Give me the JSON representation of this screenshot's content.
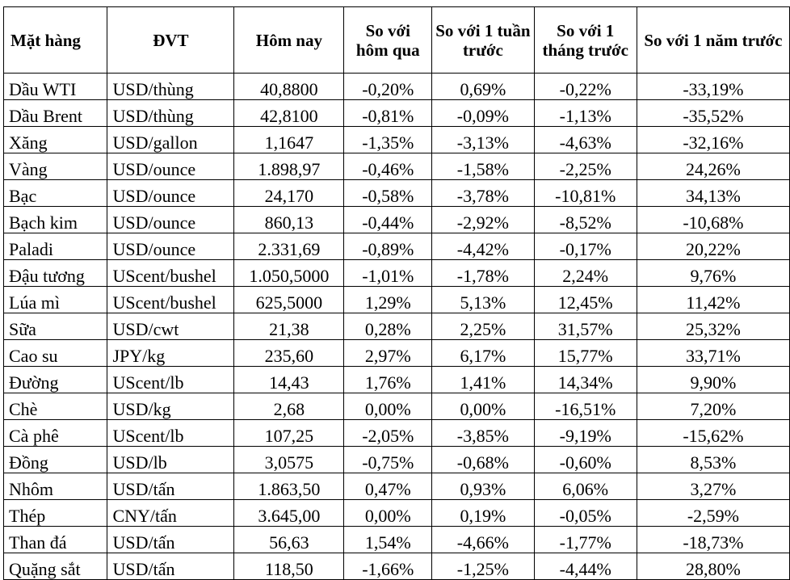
{
  "table": {
    "headers": [
      "Mặt hàng",
      "ĐVT",
      "Hôm nay",
      "So với hôm qua",
      "So với 1 tuần trước",
      "So với 1 tháng trước",
      "So với 1 năm trước"
    ],
    "rows": [
      [
        "Dầu WTI",
        "USD/thùng",
        "40,8800",
        "-0,20%",
        "0,69%",
        "-0,22%",
        "-33,19%"
      ],
      [
        "Dầu Brent",
        "USD/thùng",
        "42,8100",
        "-0,81%",
        "-0,09%",
        "-1,13%",
        "-35,52%"
      ],
      [
        "Xăng",
        "USD/gallon",
        "1,1647",
        "-1,35%",
        "-3,13%",
        "-4,63%",
        "-32,16%"
      ],
      [
        "Vàng",
        "USD/ounce",
        "1.898,97",
        "-0,46%",
        "-1,58%",
        "-2,25%",
        "24,26%"
      ],
      [
        "Bạc",
        "USD/ounce",
        "24,170",
        "-0,58%",
        "-3,78%",
        "-10,81%",
        "34,13%"
      ],
      [
        "Bạch kim",
        "USD/ounce",
        "860,13",
        "-0,44%",
        "-2,92%",
        "-8,52%",
        "-10,68%"
      ],
      [
        "Paladi",
        "USD/ounce",
        "2.331,69",
        "-0,89%",
        "-4,42%",
        "-0,17%",
        "20,22%"
      ],
      [
        "Đậu tương",
        "UScent/bushel",
        "1.050,5000",
        "-1,01%",
        "-1,78%",
        "2,24%",
        "9,76%"
      ],
      [
        "Lúa mì",
        "UScent/bushel",
        "625,5000",
        "1,29%",
        "5,13%",
        "12,45%",
        "11,42%"
      ],
      [
        "Sữa",
        "USD/cwt",
        "21,38",
        "0,28%",
        "2,25%",
        "31,57%",
        "25,32%"
      ],
      [
        "Cao su",
        "JPY/kg",
        "235,60",
        "2,97%",
        "6,17%",
        "15,77%",
        "33,71%"
      ],
      [
        "Đường",
        "UScent/lb",
        "14,43",
        "1,76%",
        "1,41%",
        "14,34%",
        "9,90%"
      ],
      [
        "Chè",
        "USD/kg",
        "2,68",
        "0,00%",
        "0,00%",
        "-16,51%",
        "7,20%"
      ],
      [
        "Cà phê",
        "UScent/lb",
        "107,25",
        "-2,05%",
        "-3,85%",
        "-9,19%",
        "-15,62%"
      ],
      [
        "Đồng",
        "USD/lb",
        "3,0575",
        "-0,75%",
        "-0,68%",
        "-0,60%",
        "8,53%"
      ],
      [
        "Nhôm",
        "USD/tấn",
        "1.863,50",
        "0,47%",
        "0,93%",
        "6,06%",
        "3,27%"
      ],
      [
        "Thép",
        "CNY/tấn",
        "3.645,00",
        "0,00%",
        "0,19%",
        "-0,05%",
        "-2,59%"
      ],
      [
        "Than đá",
        "USD/tấn",
        "56,63",
        "1,54%",
        "-4,66%",
        "-1,77%",
        "-18,73%"
      ],
      [
        "Quặng sắt",
        "USD/tấn",
        "118,50",
        "-1,66%",
        "-1,25%",
        "-4,44%",
        "28,80%"
      ]
    ]
  }
}
